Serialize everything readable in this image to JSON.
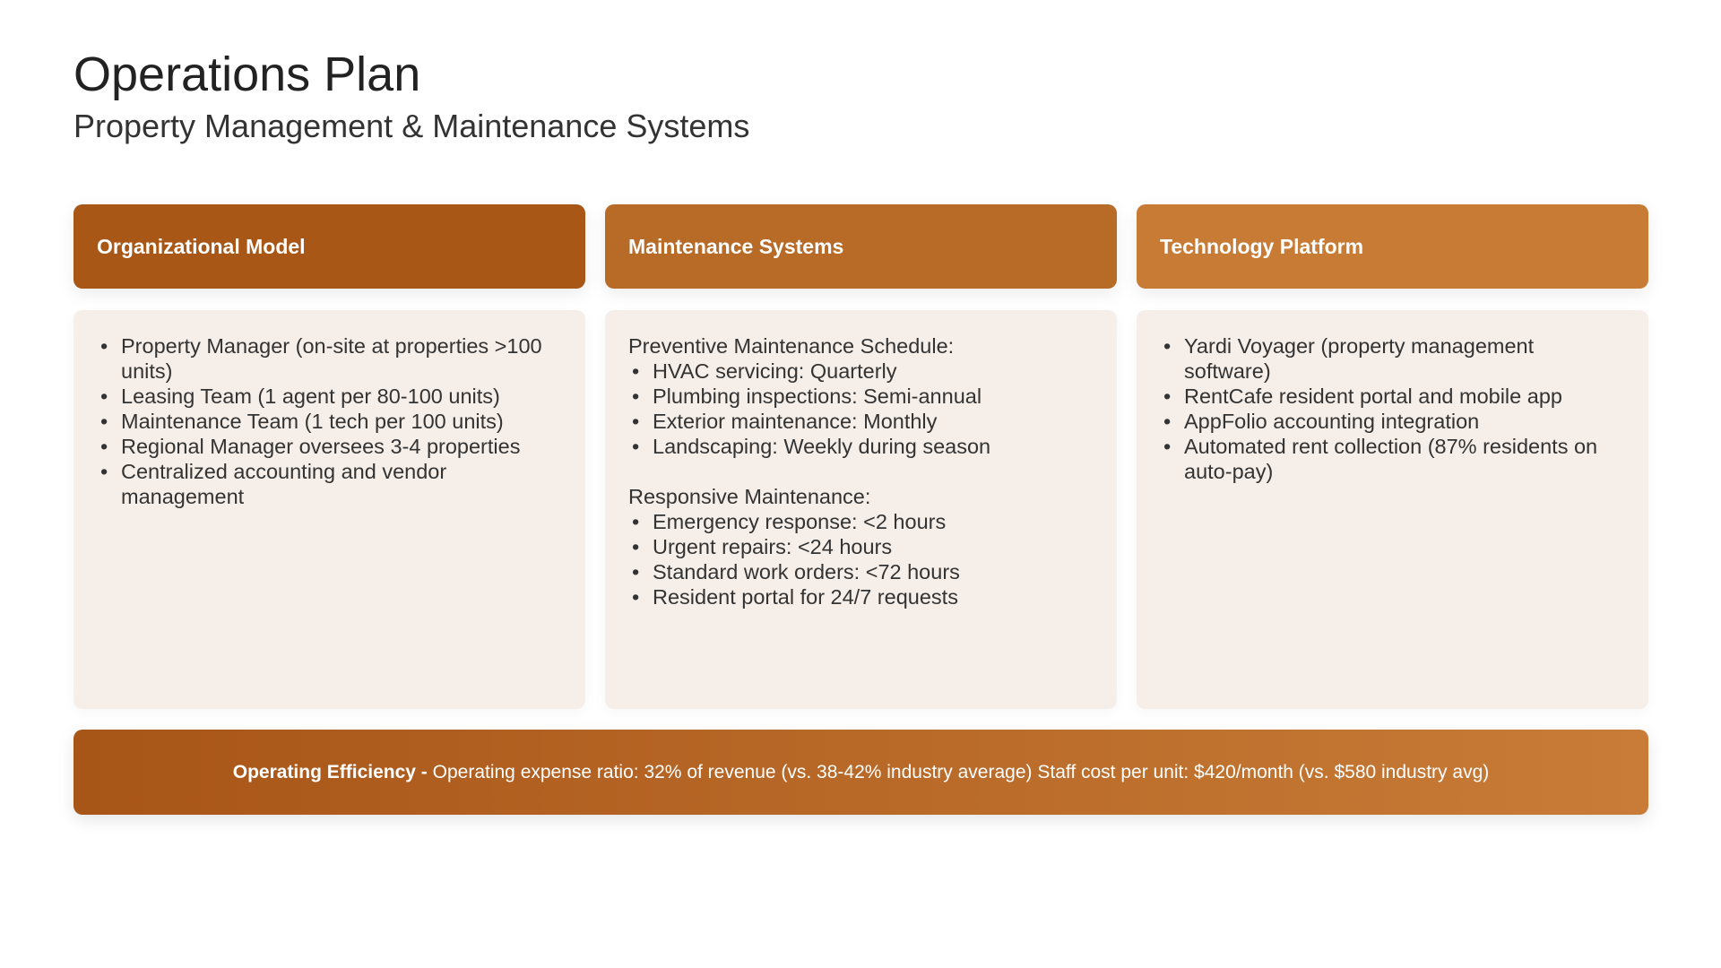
{
  "header": {
    "title": "Operations Plan",
    "subtitle": "Property Management & Maintenance Systems"
  },
  "colors": {
    "col1": "#A85716",
    "col2": "#B86A27",
    "col3": "#C77B35",
    "card_bg": "#F6EEE8"
  },
  "columns": [
    {
      "title": "Organizational Model",
      "items": [
        "Property Manager (on-site at properties >100 units)",
        "Leasing Team (1 agent per 80-100 units)",
        "Maintenance Team (1 tech per 100 units)",
        "Regional Manager oversees 3-4 properties",
        "Centralized accounting and vendor management"
      ]
    },
    {
      "title": "Maintenance Systems",
      "sections": [
        {
          "heading": "Preventive Maintenance Schedule:",
          "items": [
            "HVAC servicing: Quarterly",
            "Plumbing inspections: Semi-annual",
            "Exterior maintenance: Monthly",
            "Landscaping: Weekly during season"
          ]
        },
        {
          "heading": "Responsive Maintenance:",
          "items": [
            "Emergency response: <2 hours",
            "Urgent repairs: <24 hours",
            "Standard work orders: <72 hours",
            "Resident portal for 24/7 requests"
          ]
        }
      ]
    },
    {
      "title": "Technology Platform",
      "items": [
        "Yardi Voyager (property management software)",
        "RentCafe resident portal and mobile app",
        "AppFolio accounting integration",
        "Automated rent collection (87% residents on auto-pay)"
      ]
    }
  ],
  "footer": {
    "label": "Operating Efficiency - ",
    "text": "Operating expense ratio: 32% of revenue (vs. 38-42% industry average) Staff cost per unit: $420/month (vs. $580 industry avg)"
  }
}
